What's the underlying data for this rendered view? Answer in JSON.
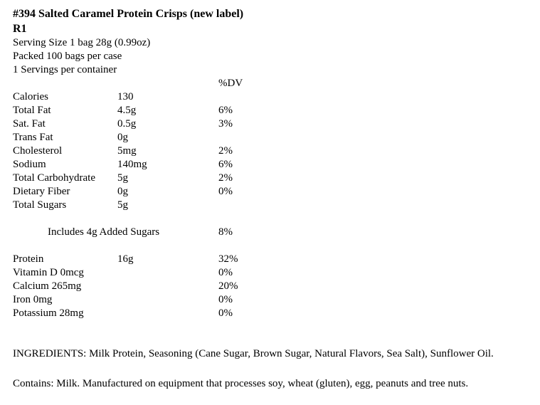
{
  "page": {
    "title": "#394 Salted Caramel Protein Crisps (new label)",
    "revision": "R1",
    "meta": {
      "serving_size": "Serving Size 1 bag 28g (0.99oz)",
      "pack": "Packed 100 bags per case",
      "servings_per_container": "1 Servings per container"
    },
    "dv_header": "%DV",
    "nutrition_rows": [
      {
        "label": "Calories",
        "amount": "130",
        "dv": ""
      },
      {
        "label": "Total Fat",
        "amount": "4.5g",
        "dv": "6%"
      },
      {
        "label": "Sat. Fat",
        "amount": "0.5g",
        "dv": "3%"
      },
      {
        "label": "Trans Fat",
        "amount": "0g",
        "dv": ""
      },
      {
        "label": "Cholesterol",
        "amount": "5mg",
        "dv": "2%"
      },
      {
        "label": "Sodium",
        "amount": "140mg",
        "dv": "6%"
      },
      {
        "label": "Total Carbohydrate",
        "amount": "5g",
        "dv": "2%"
      },
      {
        "label": "Dietary Fiber",
        "amount": "0g",
        "dv": "0%"
      },
      {
        "label": "Total Sugars",
        "amount": "5g",
        "dv": ""
      }
    ],
    "added_sugars_row": {
      "label": "Includes 4g Added Sugars",
      "dv": "8%"
    },
    "protein_row": {
      "label": "Protein",
      "amount": "16g",
      "dv": "32%"
    },
    "micronutrient_rows": [
      {
        "label": "Vitamin D 0mcg",
        "dv": "0%"
      },
      {
        "label": "Calcium 265mg",
        "dv": "20%"
      },
      {
        "label": "Iron 0mg",
        "dv": "0%"
      },
      {
        "label": "Potassium 28mg",
        "dv": "0%"
      }
    ],
    "ingredients": "INGREDIENTS: Milk Protein, Seasoning (Cane Sugar, Brown Sugar, Natural Flavors, Sea Salt), Sunflower Oil.",
    "allergens": "Contains: Milk. Manufactured on equipment that processes soy, wheat (gluten), egg, peanuts and tree nuts."
  }
}
